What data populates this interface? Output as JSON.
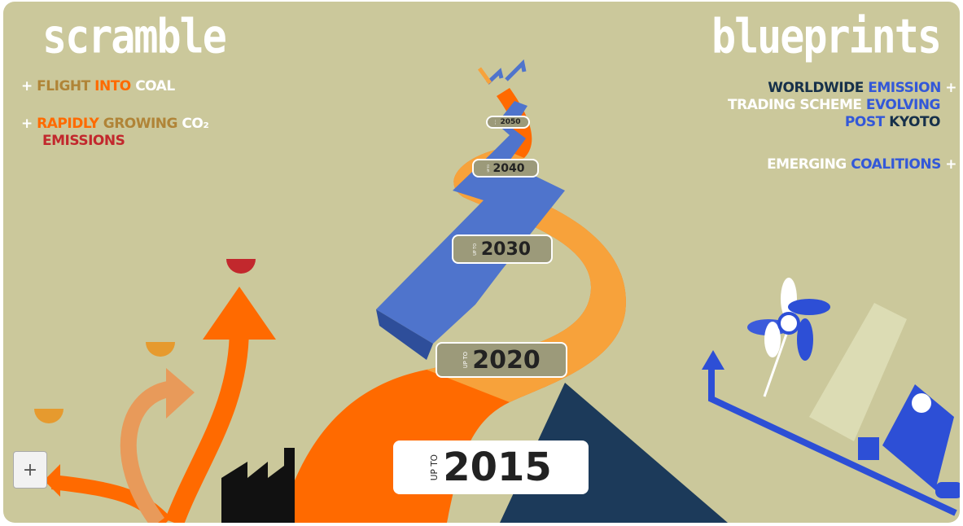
{
  "scramble": {
    "title": "scramble",
    "bullet": "+",
    "items": [
      [
        "FLIGHT",
        "INTO",
        "COAL"
      ],
      [
        "RAPIDLY",
        "GROWING",
        "CO₂",
        "EMISSIONS"
      ]
    ]
  },
  "blueprints": {
    "title": "blueprints",
    "bullet": "+",
    "items": [
      [
        "WORLDWIDE",
        "EMISSION",
        "TRADING SCHEME",
        "EVOLVING",
        "POST",
        "KYOTO"
      ],
      [
        "EMERGING",
        "COALITIONS"
      ]
    ]
  },
  "milestones": [
    {
      "prefix": "UP TO",
      "year": "2015"
    },
    {
      "prefix": "UP TO",
      "year": "2020"
    },
    {
      "prefix": "UP TO",
      "year": "2030"
    },
    {
      "prefix": "UP TO",
      "year": "2040"
    },
    {
      "prefix": "UP TO",
      "year": "2050"
    }
  ],
  "expand_button": "+"
}
